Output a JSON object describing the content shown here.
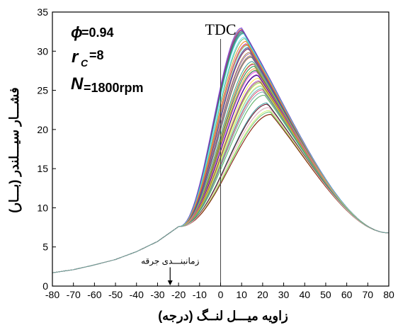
{
  "chart_data": {
    "type": "line",
    "xlabel": "زاویه میـــل لنــگ (درجه)",
    "ylabel": "فشـــار سیـــلندر (بـــار)",
    "xlim": [
      -80,
      80
    ],
    "ylim": [
      0,
      35
    ],
    "x_ticks": [
      -80,
      -70,
      -60,
      -50,
      -40,
      -30,
      -20,
      -10,
      0,
      10,
      20,
      30,
      40,
      50,
      60,
      70,
      80
    ],
    "y_ticks": [
      0,
      5,
      10,
      15,
      20,
      25,
      30,
      35
    ],
    "grid": false,
    "legend": "none",
    "annotations": {
      "tdc": {
        "label": "TDC",
        "x": 0
      },
      "spark": {
        "label": "زمانبنـــدی جرقه",
        "x": -24,
        "y": 0.8
      },
      "params": {
        "phi_symbol": "ϕ",
        "phi_value": "=0.94",
        "rc_symbol": "r",
        "rc_sub": "C",
        "rc_value": "=8",
        "n_symbol": "N",
        "n_value": "=1800rpm"
      }
    },
    "compression": {
      "x": [
        -80,
        -70,
        -60,
        -50,
        -40,
        -30,
        -20
      ],
      "y": [
        1.7,
        2.1,
        2.7,
        3.4,
        4.4,
        5.7,
        7.6
      ]
    },
    "expansion_end": {
      "x": 80,
      "y": 6.8
    },
    "envelope": {
      "peak_min": {
        "x": 25,
        "y": 21.2
      },
      "peak_max": {
        "x": 10,
        "y": 33.0
      }
    },
    "cycle_count": 70,
    "colors": [
      "#e6194b",
      "#3cb44b",
      "#4363d8",
      "#f58231",
      "#911eb4",
      "#42d4f4",
      "#f032e6",
      "#bfef45",
      "#fabed4",
      "#469990",
      "#9a6324",
      "#800000",
      "#000075",
      "#a9a9a9",
      "#ffe119",
      "#008080",
      "#6a3d9a",
      "#ff7f00",
      "#1f78b4",
      "#33a02c"
    ]
  }
}
